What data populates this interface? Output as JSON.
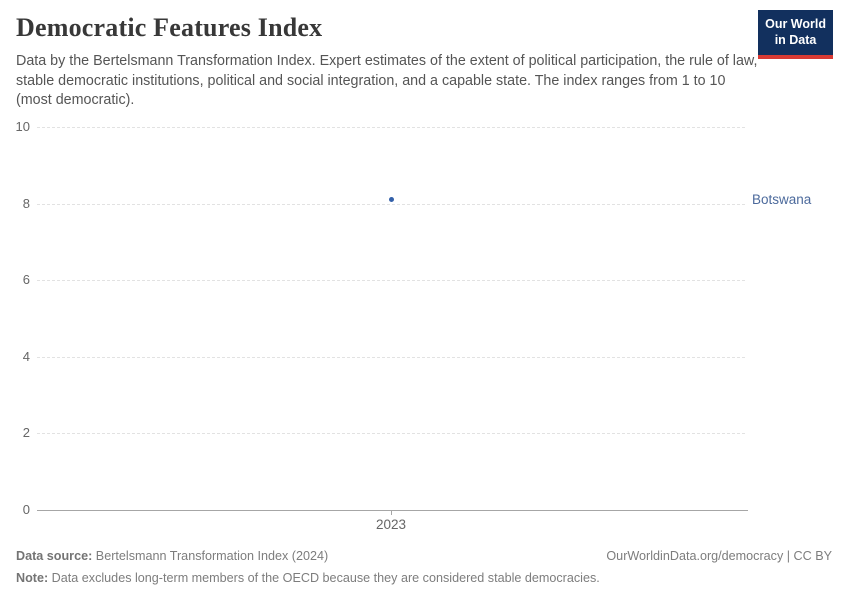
{
  "header": {
    "title": "Democratic Features Index",
    "subtitle": "Data by the Bertelsmann Transformation Index. Expert estimates of the extent of political participation, the rule of law, stable democratic institutions, political and social integration, and a capable state. The index ranges from 1 to 10 (most democratic).",
    "logo": {
      "line1": "Our World",
      "line2": "in Data",
      "bg_color": "#12305e",
      "accent_color": "#d93a34"
    }
  },
  "chart_data": {
    "type": "scatter",
    "title": "Democratic Features Index",
    "x": [
      2023
    ],
    "xtick_labels": [
      "2023"
    ],
    "series": [
      {
        "name": "Botswana",
        "values": [
          8.1
        ],
        "color": "#3360a9",
        "label_color": "#4c6a9c"
      }
    ],
    "ylim": [
      0,
      10
    ],
    "yticks": [
      0,
      2,
      4,
      6,
      8,
      10
    ],
    "grid": "horizontal-dashed",
    "legend_position": "right-of-point",
    "colors": {
      "gridline": "#e2e2e2",
      "axis_line": "#a6a6a6",
      "tick_text": "#666666"
    }
  },
  "footer": {
    "source_label": "Data source:",
    "source_text": " Bertelsmann Transformation Index (2024)",
    "credit": "OurWorldinData.org/democracy | CC BY",
    "note_label": "Note:",
    "note_text": " Data excludes long-term members of the OECD because they are considered stable democracies."
  }
}
